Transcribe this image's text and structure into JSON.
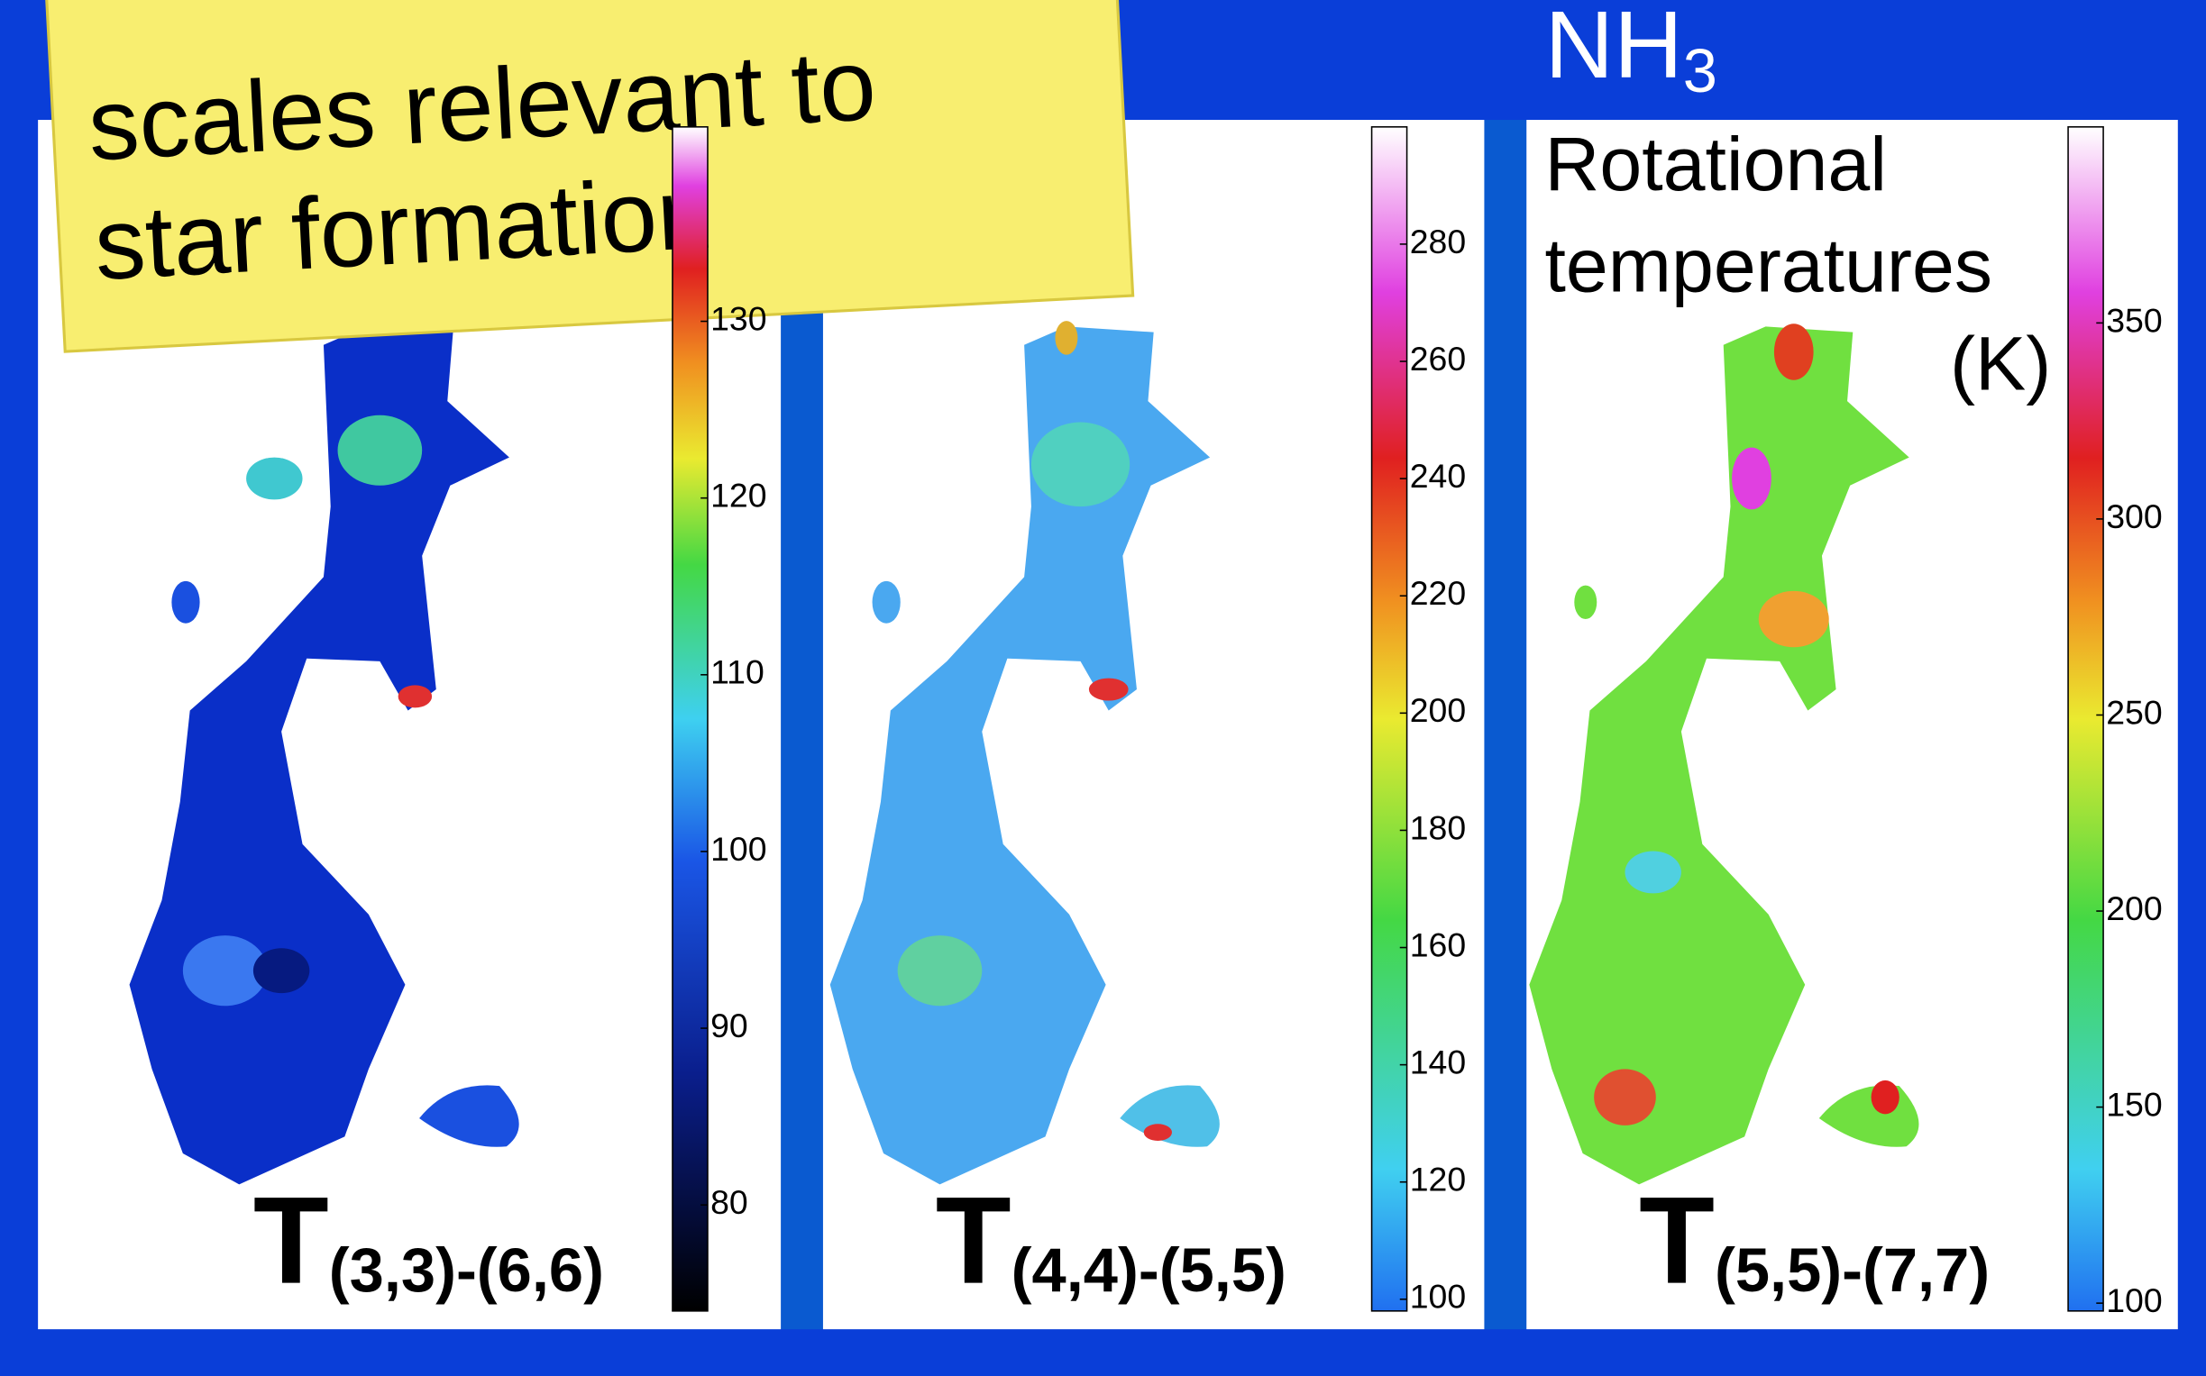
{
  "slide": {
    "title": {
      "text": "NH",
      "subscript": "3"
    },
    "callout": [
      "scales relevant to",
      "star formation"
    ],
    "description": [
      "Rotational",
      "temperatures",
      "(K)"
    ],
    "panels": [
      {
        "label": "T",
        "sublabel": "(3,3)-(6,6)",
        "colorbar": {
          "lim": [
            74,
            141
          ],
          "ticks": [
            80,
            90,
            100,
            110,
            120,
            130
          ]
        }
      },
      {
        "label": "T",
        "sublabel": "(4,4)-(5,5)",
        "colorbar": {
          "lim": [
            98,
            300
          ],
          "ticks": [
            100,
            120,
            140,
            160,
            180,
            200,
            220,
            240,
            260,
            280
          ]
        }
      },
      {
        "label": "T",
        "sublabel": "(5,5)-(7,7)",
        "colorbar": {
          "lim": [
            98,
            400
          ],
          "ticks": [
            100,
            150,
            200,
            250,
            300,
            350
          ]
        }
      }
    ]
  }
}
